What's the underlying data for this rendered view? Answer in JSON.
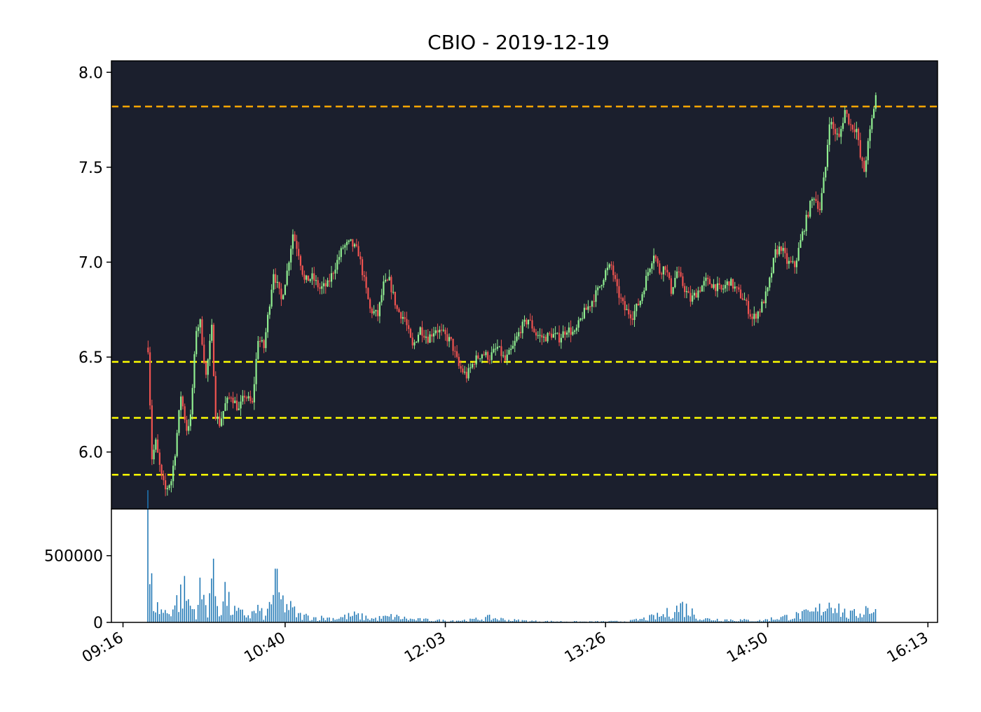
{
  "chart_data": {
    "type": "candlestick",
    "title": "CBIO - 2019-12-19",
    "colors": {
      "price_bg": "#1b1f2d",
      "up": "#90ee90",
      "down": "#ef5350",
      "volume": "#1f77b4",
      "orange_level": "#ffa500",
      "yellow_level": "#ffff00"
    },
    "price_axis": {
      "ylim": [
        5.7,
        8.06
      ],
      "ticks": [
        "6.0",
        "6.5",
        "7.0",
        "7.5",
        "8.0"
      ]
    },
    "volume_axis": {
      "ylim": [
        0,
        850000
      ],
      "ticks": [
        "0",
        "500000"
      ]
    },
    "x_axis": {
      "range_minutes": [
        -6,
        422
      ],
      "ticks": [
        {
          "label": "09:16",
          "t": 0
        },
        {
          "label": "10:40",
          "t": 84
        },
        {
          "label": "12:03",
          "t": 167
        },
        {
          "label": "13:26",
          "t": 250
        },
        {
          "label": "14:50",
          "t": 334
        },
        {
          "label": "16:13",
          "t": 417
        }
      ]
    },
    "levels": [
      {
        "price": 7.82,
        "style": "orange"
      },
      {
        "price": 6.475,
        "style": "yellow"
      },
      {
        "price": 6.18,
        "style": "yellow"
      },
      {
        "price": 5.88,
        "style": "yellow"
      }
    ],
    "path_keypoints": [
      [
        13,
        6.55
      ],
      [
        15,
        5.97
      ],
      [
        17,
        6.05
      ],
      [
        20,
        5.86
      ],
      [
        22,
        5.8
      ],
      [
        25,
        5.85
      ],
      [
        27,
        6.0
      ],
      [
        30,
        6.3
      ],
      [
        33,
        6.12
      ],
      [
        35,
        6.18
      ],
      [
        38,
        6.65
      ],
      [
        40,
        6.68
      ],
      [
        43,
        6.4
      ],
      [
        46,
        6.65
      ],
      [
        48,
        6.2
      ],
      [
        50,
        6.15
      ],
      [
        53,
        6.25
      ],
      [
        56,
        6.3
      ],
      [
        60,
        6.22
      ],
      [
        63,
        6.3
      ],
      [
        67,
        6.25
      ],
      [
        70,
        6.6
      ],
      [
        73,
        6.55
      ],
      [
        78,
        6.95
      ],
      [
        82,
        6.8
      ],
      [
        85,
        6.95
      ],
      [
        88,
        7.15
      ],
      [
        91,
        7.05
      ],
      [
        94,
        6.9
      ],
      [
        98,
        6.92
      ],
      [
        102,
        6.86
      ],
      [
        106,
        6.88
      ],
      [
        110,
        6.98
      ],
      [
        114,
        7.08
      ],
      [
        118,
        7.1
      ],
      [
        122,
        7.05
      ],
      [
        125,
        6.9
      ],
      [
        128,
        6.75
      ],
      [
        132,
        6.72
      ],
      [
        135,
        6.88
      ],
      [
        138,
        6.9
      ],
      [
        142,
        6.75
      ],
      [
        146,
        6.7
      ],
      [
        150,
        6.55
      ],
      [
        154,
        6.65
      ],
      [
        158,
        6.6
      ],
      [
        162,
        6.65
      ],
      [
        166,
        6.62
      ],
      [
        170,
        6.58
      ],
      [
        174,
        6.45
      ],
      [
        178,
        6.4
      ],
      [
        182,
        6.48
      ],
      [
        186,
        6.52
      ],
      [
        190,
        6.5
      ],
      [
        194,
        6.55
      ],
      [
        198,
        6.48
      ],
      [
        202,
        6.55
      ],
      [
        206,
        6.65
      ],
      [
        210,
        6.7
      ],
      [
        214,
        6.62
      ],
      [
        218,
        6.6
      ],
      [
        222,
        6.62
      ],
      [
        226,
        6.6
      ],
      [
        230,
        6.65
      ],
      [
        234,
        6.62
      ],
      [
        238,
        6.72
      ],
      [
        242,
        6.78
      ],
      [
        246,
        6.85
      ],
      [
        250,
        6.95
      ],
      [
        253,
        6.98
      ],
      [
        256,
        6.85
      ],
      [
        260,
        6.75
      ],
      [
        264,
        6.72
      ],
      [
        268,
        6.8
      ],
      [
        272,
        6.95
      ],
      [
        275,
        7.05
      ],
      [
        278,
        6.95
      ],
      [
        281,
        6.98
      ],
      [
        284,
        6.85
      ],
      [
        287,
        6.95
      ],
      [
        290,
        6.88
      ],
      [
        294,
        6.8
      ],
      [
        298,
        6.85
      ],
      [
        302,
        6.9
      ],
      [
        306,
        6.88
      ],
      [
        310,
        6.85
      ],
      [
        314,
        6.9
      ],
      [
        318,
        6.85
      ],
      [
        322,
        6.8
      ],
      [
        326,
        6.7
      ],
      [
        330,
        6.75
      ],
      [
        334,
        6.85
      ],
      [
        338,
        7.05
      ],
      [
        341,
        7.08
      ],
      [
        344,
        7.0
      ],
      [
        348,
        6.98
      ],
      [
        352,
        7.15
      ],
      [
        356,
        7.3
      ],
      [
        358,
        7.35
      ],
      [
        361,
        7.28
      ],
      [
        364,
        7.5
      ],
      [
        366,
        7.75
      ],
      [
        368,
        7.7
      ],
      [
        371,
        7.65
      ],
      [
        374,
        7.8
      ],
      [
        377,
        7.72
      ],
      [
        380,
        7.7
      ],
      [
        382,
        7.55
      ],
      [
        384,
        7.48
      ],
      [
        386,
        7.62
      ],
      [
        388,
        7.75
      ],
      [
        390,
        7.88
      ]
    ],
    "volume_keypoints": [
      [
        13,
        820000
      ],
      [
        14,
        320000
      ],
      [
        15,
        280000
      ],
      [
        17,
        140000
      ],
      [
        19,
        110000
      ],
      [
        23,
        80000
      ],
      [
        27,
        150000
      ],
      [
        30,
        230000
      ],
      [
        32,
        260000
      ],
      [
        35,
        140000
      ],
      [
        38,
        90000
      ],
      [
        40,
        250000
      ],
      [
        44,
        120000
      ],
      [
        46,
        420000
      ],
      [
        50,
        90000
      ],
      [
        53,
        260000
      ],
      [
        56,
        110000
      ],
      [
        60,
        80000
      ],
      [
        66,
        60000
      ],
      [
        70,
        110000
      ],
      [
        74,
        40000
      ],
      [
        79,
        330000
      ],
      [
        82,
        180000
      ],
      [
        87,
        120000
      ],
      [
        91,
        60000
      ],
      [
        100,
        40000
      ],
      [
        110,
        35000
      ],
      [
        120,
        60000
      ],
      [
        130,
        30000
      ],
      [
        140,
        50000
      ],
      [
        150,
        25000
      ],
      [
        160,
        20000
      ],
      [
        167,
        15000
      ],
      [
        180,
        20000
      ],
      [
        190,
        40000
      ],
      [
        200,
        20000
      ],
      [
        215,
        10000
      ],
      [
        230,
        8000
      ],
      [
        240,
        6000
      ],
      [
        250,
        8000
      ],
      [
        262,
        10000
      ],
      [
        270,
        30000
      ],
      [
        280,
        60000
      ],
      [
        290,
        140000
      ],
      [
        300,
        30000
      ],
      [
        310,
        25000
      ],
      [
        320,
        20000
      ],
      [
        330,
        15000
      ],
      [
        340,
        40000
      ],
      [
        350,
        60000
      ],
      [
        358,
        80000
      ],
      [
        364,
        140000
      ],
      [
        368,
        200000
      ],
      [
        372,
        100000
      ],
      [
        376,
        60000
      ],
      [
        382,
        80000
      ],
      [
        386,
        130000
      ],
      [
        390,
        110000
      ]
    ]
  }
}
